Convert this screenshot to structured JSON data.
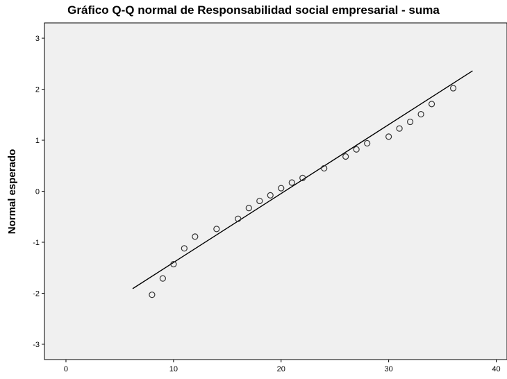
{
  "chart_data": {
    "type": "scatter",
    "title": "Gráfico Q-Q normal de Responsabilidad social empresarial - suma",
    "xlabel": "",
    "ylabel": "Normal esperado",
    "xlim": [
      -2,
      41
    ],
    "ylim": [
      -3.3,
      3.3
    ],
    "xticks": [
      0,
      10,
      20,
      30,
      40
    ],
    "yticks": [
      -3,
      -2,
      -1,
      0,
      1,
      2,
      3
    ],
    "grid": false,
    "colors": {
      "plot_background": "#f0f0f0",
      "marker_stroke": "#333333",
      "line": "#000000"
    },
    "points": [
      {
        "x": 8,
        "y": -2.03
      },
      {
        "x": 9,
        "y": -1.71
      },
      {
        "x": 10,
        "y": -1.43
      },
      {
        "x": 11,
        "y": -1.12
      },
      {
        "x": 12,
        "y": -0.89
      },
      {
        "x": 14,
        "y": -0.74
      },
      {
        "x": 16,
        "y": -0.54
      },
      {
        "x": 17,
        "y": -0.33
      },
      {
        "x": 18,
        "y": -0.19
      },
      {
        "x": 19,
        "y": -0.08
      },
      {
        "x": 20,
        "y": 0.06
      },
      {
        "x": 21,
        "y": 0.17
      },
      {
        "x": 22,
        "y": 0.26
      },
      {
        "x": 24,
        "y": 0.45
      },
      {
        "x": 26,
        "y": 0.68
      },
      {
        "x": 27,
        "y": 0.82
      },
      {
        "x": 28,
        "y": 0.94
      },
      {
        "x": 30,
        "y": 1.07
      },
      {
        "x": 31,
        "y": 1.23
      },
      {
        "x": 32,
        "y": 1.36
      },
      {
        "x": 33,
        "y": 1.51
      },
      {
        "x": 34,
        "y": 1.71
      },
      {
        "x": 36,
        "y": 2.02
      }
    ],
    "reference_line": {
      "x": [
        6.2,
        37.8
      ],
      "y": [
        -1.91,
        2.36
      ]
    }
  }
}
